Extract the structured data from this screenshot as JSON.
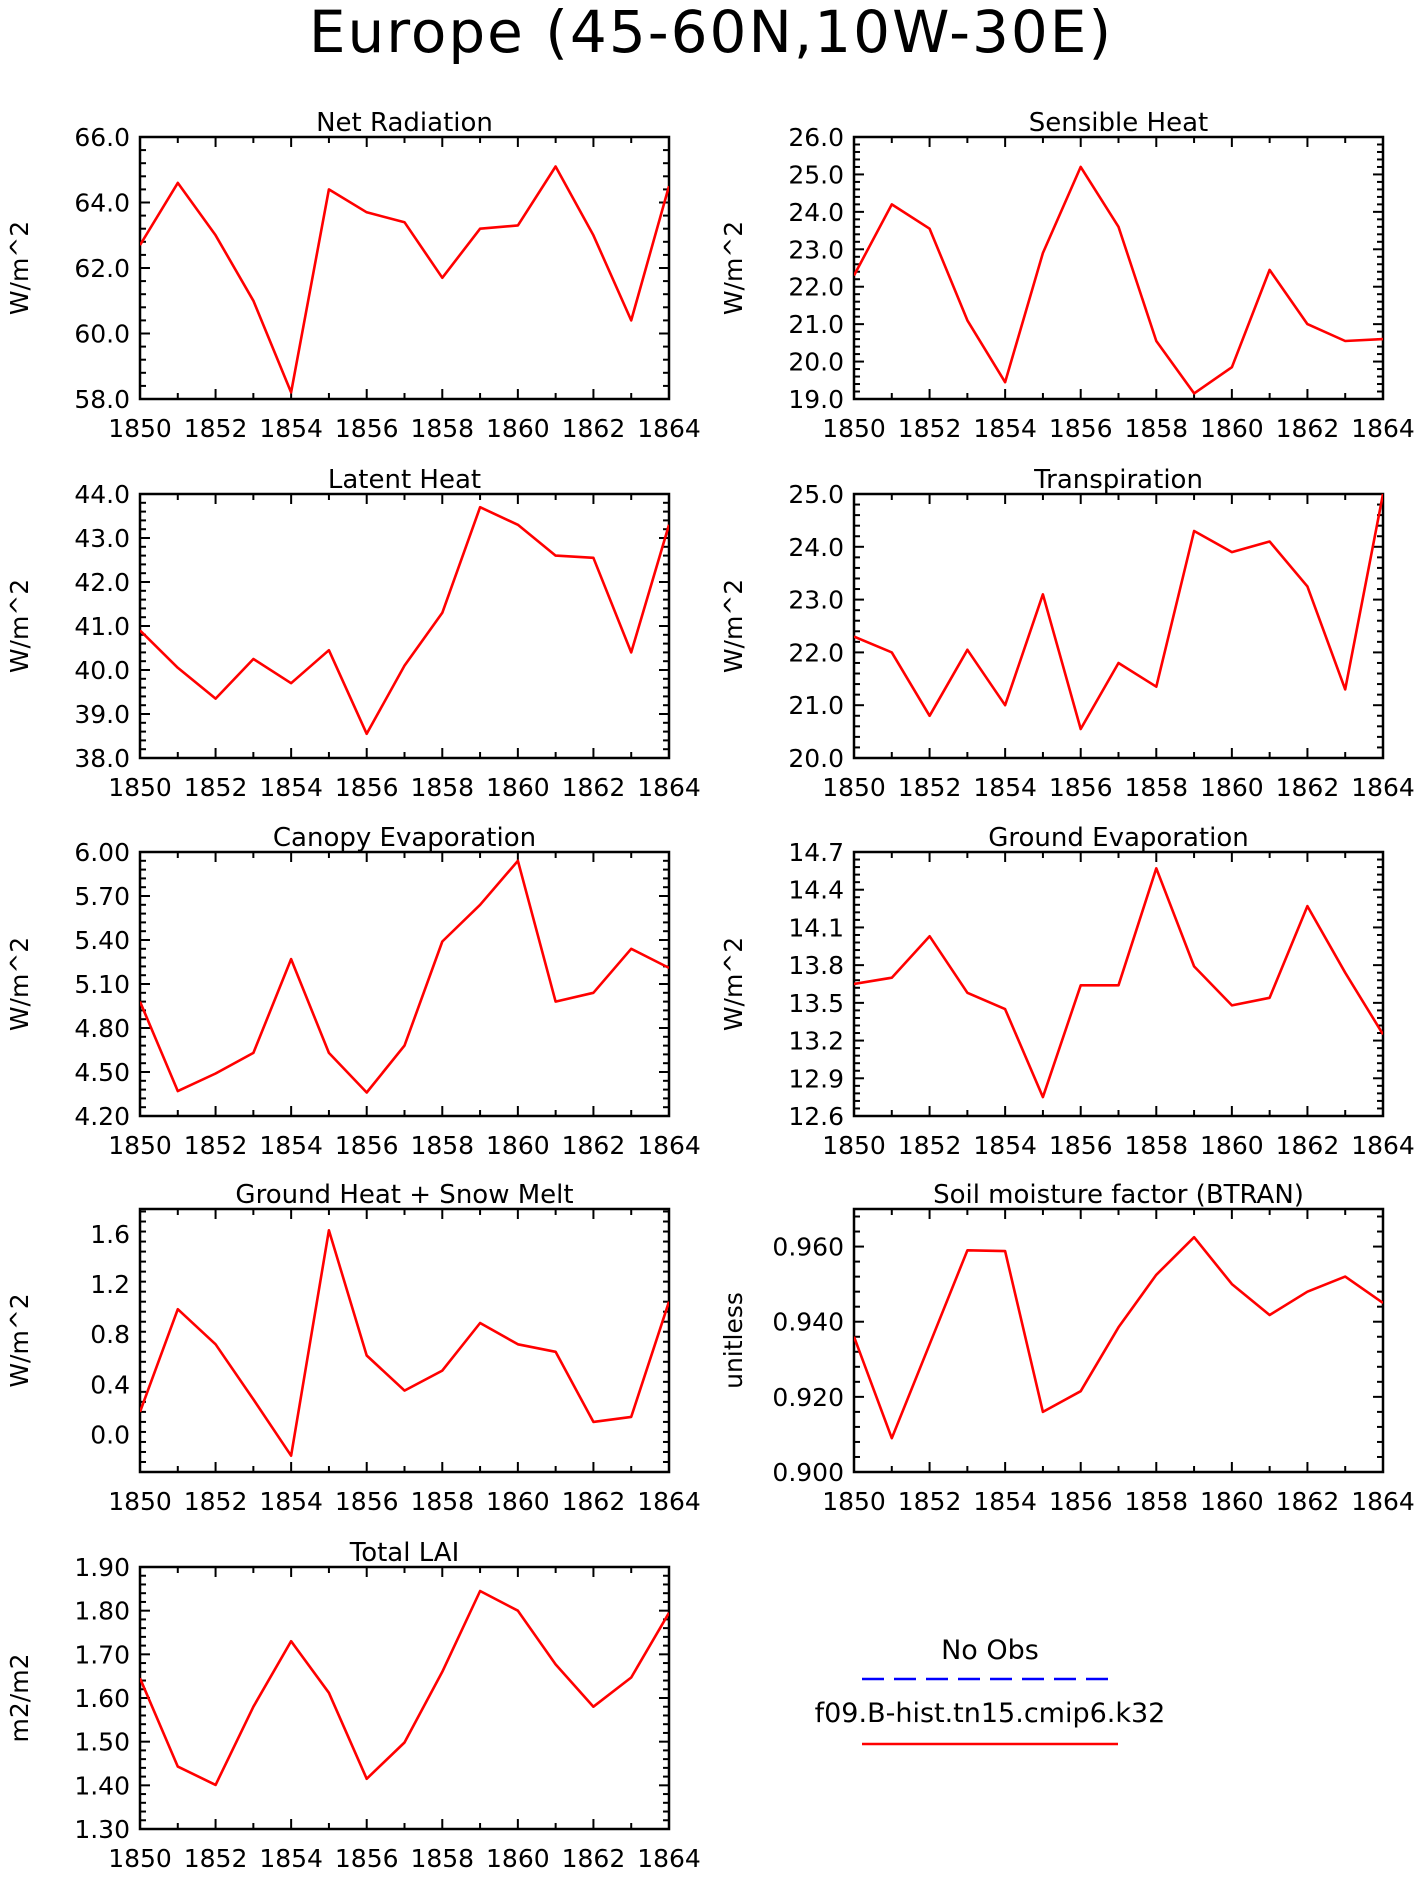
{
  "title": "Europe (45-60N,10W-30E)",
  "legend": {
    "obs_label": "No Obs",
    "obs_color": "#0000ff",
    "model_label": "f09.B-hist.tn15.cmip6.k32",
    "model_color": "#ff0000"
  },
  "chart_data": [
    {
      "type": "line",
      "title": "Net Radiation",
      "xlabel": "",
      "ylabel": "W/m^2",
      "xlim": [
        1850,
        1864
      ],
      "ylim": [
        58.0,
        66.0
      ],
      "yticks": [
        58.0,
        60.0,
        62.0,
        64.0,
        66.0
      ],
      "ydecimals": 1,
      "xticks": [
        1850,
        1852,
        1854,
        1856,
        1858,
        1860,
        1862,
        1864
      ],
      "series": [
        {
          "x": [
            1850,
            1851,
            1852,
            1853,
            1854,
            1855,
            1856,
            1857,
            1858,
            1859,
            1860,
            1861,
            1862,
            1863,
            1864
          ],
          "values": [
            62.7,
            64.6,
            63.0,
            61.0,
            58.2,
            64.4,
            63.7,
            63.4,
            61.7,
            63.2,
            63.3,
            65.1,
            63.0,
            60.4,
            64.5
          ]
        }
      ]
    },
    {
      "type": "line",
      "title": "Sensible Heat",
      "xlabel": "",
      "ylabel": "W/m^2",
      "xlim": [
        1850,
        1864
      ],
      "ylim": [
        19.0,
        26.0
      ],
      "yticks": [
        19.0,
        20.0,
        21.0,
        22.0,
        23.0,
        24.0,
        25.0,
        26.0
      ],
      "ydecimals": 1,
      "xticks": [
        1850,
        1852,
        1854,
        1856,
        1858,
        1860,
        1862,
        1864
      ],
      "series": [
        {
          "x": [
            1850,
            1851,
            1852,
            1853,
            1854,
            1855,
            1856,
            1857,
            1858,
            1859,
            1860,
            1861,
            1862,
            1863,
            1864
          ],
          "values": [
            22.3,
            24.2,
            23.55,
            21.1,
            19.45,
            22.9,
            25.2,
            23.6,
            20.55,
            19.15,
            19.85,
            22.45,
            21.0,
            20.55,
            20.6
          ]
        }
      ]
    },
    {
      "type": "line",
      "title": "Latent Heat",
      "xlabel": "",
      "ylabel": "W/m^2",
      "xlim": [
        1850,
        1864
      ],
      "ylim": [
        38.0,
        44.0
      ],
      "yticks": [
        38.0,
        39.0,
        40.0,
        41.0,
        42.0,
        43.0,
        44.0
      ],
      "ydecimals": 1,
      "xticks": [
        1850,
        1852,
        1854,
        1856,
        1858,
        1860,
        1862,
        1864
      ],
      "series": [
        {
          "x": [
            1850,
            1851,
            1852,
            1853,
            1854,
            1855,
            1856,
            1857,
            1858,
            1859,
            1860,
            1861,
            1862,
            1863,
            1864
          ],
          "values": [
            40.9,
            40.05,
            39.35,
            40.25,
            39.7,
            40.45,
            38.55,
            40.1,
            41.3,
            43.7,
            43.3,
            42.6,
            42.55,
            40.4,
            43.3
          ]
        }
      ]
    },
    {
      "type": "line",
      "title": "Transpiration",
      "xlabel": "",
      "ylabel": "W/m^2",
      "xlim": [
        1850,
        1864
      ],
      "ylim": [
        20.0,
        25.0
      ],
      "yticks": [
        20.0,
        21.0,
        22.0,
        23.0,
        24.0,
        25.0
      ],
      "ydecimals": 1,
      "xticks": [
        1850,
        1852,
        1854,
        1856,
        1858,
        1860,
        1862,
        1864
      ],
      "series": [
        {
          "x": [
            1850,
            1851,
            1852,
            1853,
            1854,
            1855,
            1856,
            1857,
            1858,
            1859,
            1860,
            1861,
            1862,
            1863,
            1864
          ],
          "values": [
            22.3,
            22.0,
            20.8,
            22.05,
            21.0,
            23.1,
            20.55,
            21.8,
            21.35,
            24.3,
            23.9,
            24.1,
            23.25,
            21.3,
            25.0
          ]
        }
      ]
    },
    {
      "type": "line",
      "title": "Canopy Evaporation",
      "xlabel": "",
      "ylabel": "W/m^2",
      "xlim": [
        1850,
        1864
      ],
      "ylim": [
        4.2,
        6.0
      ],
      "yticks": [
        4.2,
        4.5,
        4.8,
        5.1,
        5.4,
        5.7,
        6.0
      ],
      "ydecimals": 2,
      "xticks": [
        1850,
        1852,
        1854,
        1856,
        1858,
        1860,
        1862,
        1864
      ],
      "series": [
        {
          "x": [
            1850,
            1851,
            1852,
            1853,
            1854,
            1855,
            1856,
            1857,
            1858,
            1859,
            1860,
            1861,
            1862,
            1863,
            1864
          ],
          "values": [
            4.98,
            4.37,
            4.49,
            4.63,
            5.27,
            4.63,
            4.36,
            4.68,
            5.39,
            5.64,
            5.94,
            4.98,
            5.04,
            5.34,
            5.21
          ]
        }
      ]
    },
    {
      "type": "line",
      "title": "Ground Evaporation",
      "xlabel": "",
      "ylabel": "W/m^2",
      "xlim": [
        1850,
        1864
      ],
      "ylim": [
        12.6,
        14.7
      ],
      "yticks": [
        12.6,
        12.9,
        13.2,
        13.5,
        13.8,
        14.1,
        14.4,
        14.7
      ],
      "ydecimals": 1,
      "xticks": [
        1850,
        1852,
        1854,
        1856,
        1858,
        1860,
        1862,
        1864
      ],
      "series": [
        {
          "x": [
            1850,
            1851,
            1852,
            1853,
            1854,
            1855,
            1856,
            1857,
            1858,
            1859,
            1860,
            1861,
            1862,
            1863,
            1864
          ],
          "values": [
            13.65,
            13.7,
            14.03,
            13.58,
            13.45,
            12.75,
            13.64,
            13.64,
            14.57,
            13.79,
            13.48,
            13.54,
            14.27,
            13.74,
            13.25
          ]
        }
      ]
    },
    {
      "type": "line",
      "title": "Ground Heat + Snow Melt",
      "xlabel": "",
      "ylabel": "W/m^2",
      "xlim": [
        1850,
        1864
      ],
      "ylim": [
        -0.3,
        1.8
      ],
      "yticks": [
        0.0,
        0.4,
        0.8,
        1.2,
        1.6
      ],
      "ydecimals": 1,
      "xticks": [
        1850,
        1852,
        1854,
        1856,
        1858,
        1860,
        1862,
        1864
      ],
      "series": [
        {
          "x": [
            1850,
            1851,
            1852,
            1853,
            1854,
            1855,
            1856,
            1857,
            1858,
            1859,
            1860,
            1861,
            1862,
            1863,
            1864
          ],
          "values": [
            0.18,
            1.0,
            0.72,
            0.28,
            -0.17,
            1.63,
            0.63,
            0.35,
            0.51,
            0.89,
            0.72,
            0.66,
            0.1,
            0.14,
            1.06
          ]
        }
      ]
    },
    {
      "type": "line",
      "title": "Soil moisture factor (BTRAN)",
      "xlabel": "",
      "ylabel": "unitless",
      "xlim": [
        1850,
        1864
      ],
      "ylim": [
        0.9,
        0.97
      ],
      "yticks": [
        0.9,
        0.92,
        0.94,
        0.96
      ],
      "ydecimals": 3,
      "xticks": [
        1850,
        1852,
        1854,
        1856,
        1858,
        1860,
        1862,
        1864
      ],
      "series": [
        {
          "x": [
            1850,
            1851,
            1852,
            1853,
            1854,
            1855,
            1856,
            1857,
            1858,
            1859,
            1860,
            1861,
            1862,
            1863,
            1864
          ],
          "values": [
            0.936,
            0.909,
            0.934,
            0.959,
            0.9588,
            0.916,
            0.9215,
            0.9385,
            0.9525,
            0.9625,
            0.95,
            0.9418,
            0.948,
            0.952,
            0.945
          ]
        }
      ]
    },
    {
      "type": "line",
      "title": "Total LAI",
      "xlabel": "",
      "ylabel": "m2/m2",
      "xlim": [
        1850,
        1864
      ],
      "ylim": [
        1.3,
        1.9
      ],
      "yticks": [
        1.3,
        1.4,
        1.5,
        1.6,
        1.7,
        1.8,
        1.9
      ],
      "ydecimals": 2,
      "xticks": [
        1850,
        1852,
        1854,
        1856,
        1858,
        1860,
        1862,
        1864
      ],
      "series": [
        {
          "x": [
            1850,
            1851,
            1852,
            1853,
            1854,
            1855,
            1856,
            1857,
            1858,
            1859,
            1860,
            1861,
            1862,
            1863,
            1864
          ],
          "values": [
            1.645,
            1.443,
            1.401,
            1.58,
            1.73,
            1.612,
            1.415,
            1.498,
            1.66,
            1.845,
            1.8,
            1.677,
            1.58,
            1.647,
            1.795
          ]
        }
      ]
    }
  ]
}
